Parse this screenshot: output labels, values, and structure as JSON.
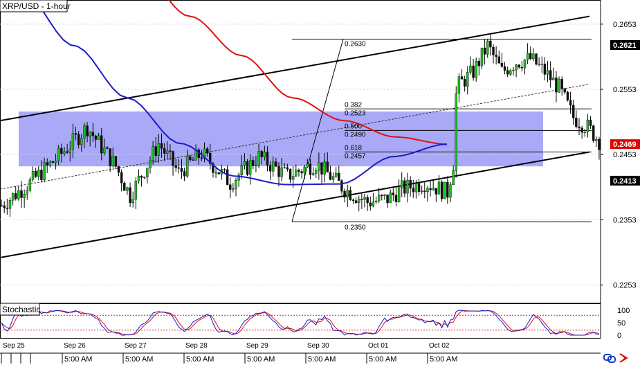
{
  "chart_data": {
    "type": "candlestick",
    "title": "XRP/USD - 1-hour",
    "ylim": [
      0.2225,
      0.269
    ],
    "price_axis_labels": [
      "0.2653",
      "0.2553",
      "0.2453",
      "0.2353",
      "0.2253"
    ],
    "price_axis_values": [
      0.2653,
      0.2553,
      0.2453,
      0.2353,
      0.2253
    ],
    "highlighted_prices": [
      {
        "label": "0.2621",
        "value": 0.2621,
        "style": "dark"
      },
      {
        "label": "0.2469",
        "value": 0.2469,
        "style": "red"
      },
      {
        "label": "0.2413",
        "value": 0.2413,
        "style": "dark"
      }
    ],
    "x_dates": [
      "Sep 25",
      "Sep 26",
      "Sep 27",
      "Sep 28",
      "Sep 29",
      "Sep 30",
      "Oct 01",
      "Oct 02"
    ],
    "x_times": [
      "5:00 AM",
      "5:00 AM",
      "5:00 AM",
      "5:00 AM",
      "5:00 AM",
      "5:00 AM",
      "5:00 AM"
    ],
    "fib_swing_high": {
      "label": "0.2630",
      "value": 0.263
    },
    "fib_swing_low": {
      "label": "0.2350",
      "value": 0.235
    },
    "fib_levels": [
      {
        "ratio": "0.382",
        "price": "0.2523",
        "value": 0.2523
      },
      {
        "ratio": "0.500",
        "price": "0.2490",
        "value": 0.249
      },
      {
        "ratio": "0.618",
        "price": "0.2457",
        "value": 0.2457
      }
    ],
    "zone": {
      "low": 0.2435,
      "high": 0.2519,
      "color": "#8c8cf5"
    },
    "channel": {
      "upper_start": 0.2505,
      "upper_end": 0.2665,
      "lower_start": 0.2295,
      "lower_end": 0.2457,
      "mid_start": 0.24,
      "mid_end": 0.2561
    },
    "ma_fast": {
      "color": "#1a1acc",
      "values": [
        0.2705,
        0.262,
        0.254,
        0.247,
        0.242,
        0.2407,
        0.2408,
        0.245,
        0.2469
      ]
    },
    "ma_slow": {
      "color": "#dd1111",
      "values": [
        0.2735,
        0.2665,
        0.2605,
        0.254,
        0.2505,
        0.248,
        0.2469
      ]
    },
    "candle_count": 210,
    "series": [
      {
        "name": "XRP/USD",
        "waypoints": [
          [
            0,
            0.2375
          ],
          [
            10,
            0.241
          ],
          [
            20,
            0.245
          ],
          [
            30,
            0.2495
          ],
          [
            40,
            0.2435
          ],
          [
            45,
            0.239
          ],
          [
            55,
            0.247
          ],
          [
            62,
            0.2425
          ],
          [
            70,
            0.2455
          ],
          [
            80,
            0.241
          ],
          [
            90,
            0.245
          ],
          [
            100,
            0.242
          ],
          [
            110,
            0.244
          ],
          [
            120,
            0.24
          ],
          [
            128,
            0.238
          ],
          [
            135,
            0.2385
          ],
          [
            140,
            0.24
          ],
          [
            148,
            0.241
          ],
          [
            156,
            0.2395
          ],
          [
            158,
            0.244
          ],
          [
            159,
            0.2545
          ],
          [
            160,
            0.256
          ],
          [
            165,
            0.258
          ],
          [
            170,
            0.262
          ],
          [
            175,
            0.258
          ],
          [
            180,
            0.2595
          ],
          [
            185,
            0.26
          ],
          [
            190,
            0.258
          ],
          [
            195,
            0.2555
          ],
          [
            200,
            0.251
          ],
          [
            205,
            0.2495
          ],
          [
            210,
            0.2469
          ]
        ]
      }
    ],
    "stochastic": {
      "label": "Stochastic",
      "axis_labels": [
        "100",
        "50",
        "0"
      ],
      "axis_values": [
        100,
        50,
        0
      ],
      "overbought": 80,
      "oversold": 20,
      "k_color": "#1a1acc",
      "d_color": "#dd1111"
    }
  },
  "icons": [
    "link-icon",
    "arrow-icon"
  ]
}
